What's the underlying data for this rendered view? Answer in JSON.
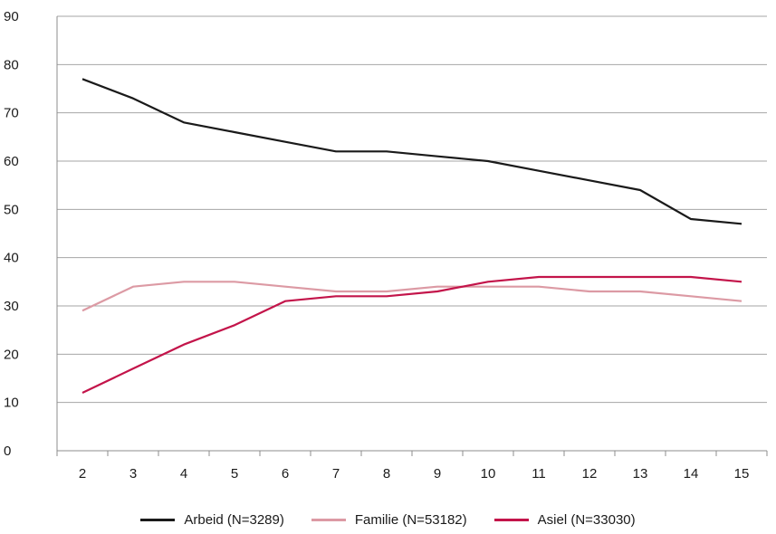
{
  "chart_data": {
    "type": "line",
    "title": "",
    "xlabel": "",
    "ylabel": "",
    "x": [
      "2",
      "3",
      "4",
      "5",
      "6",
      "7",
      "8",
      "9",
      "10",
      "11",
      "12",
      "13",
      "14",
      "15"
    ],
    "ylim": [
      0,
      90
    ],
    "yticks": [
      "0",
      "10",
      "20",
      "30",
      "40",
      "50",
      "60",
      "70",
      "80",
      "90"
    ],
    "grid": "horizontal",
    "legend_position": "bottom",
    "series": [
      {
        "name": "Arbeid (N=3289)",
        "color": "#1a1a1a",
        "values": [
          77,
          73,
          68,
          66,
          64,
          62,
          62,
          61,
          60,
          58,
          56,
          54,
          48,
          47
        ]
      },
      {
        "name": "Familie (N=53182)",
        "color": "#dc9aa4",
        "values": [
          29,
          34,
          35,
          35,
          34,
          33,
          33,
          34,
          34,
          34,
          33,
          33,
          32,
          31
        ]
      },
      {
        "name": "Asiel (N=33030)",
        "color": "#c3144a",
        "values": [
          12,
          17,
          22,
          26,
          31,
          32,
          32,
          33,
          35,
          36,
          36,
          36,
          36,
          35
        ]
      }
    ]
  }
}
